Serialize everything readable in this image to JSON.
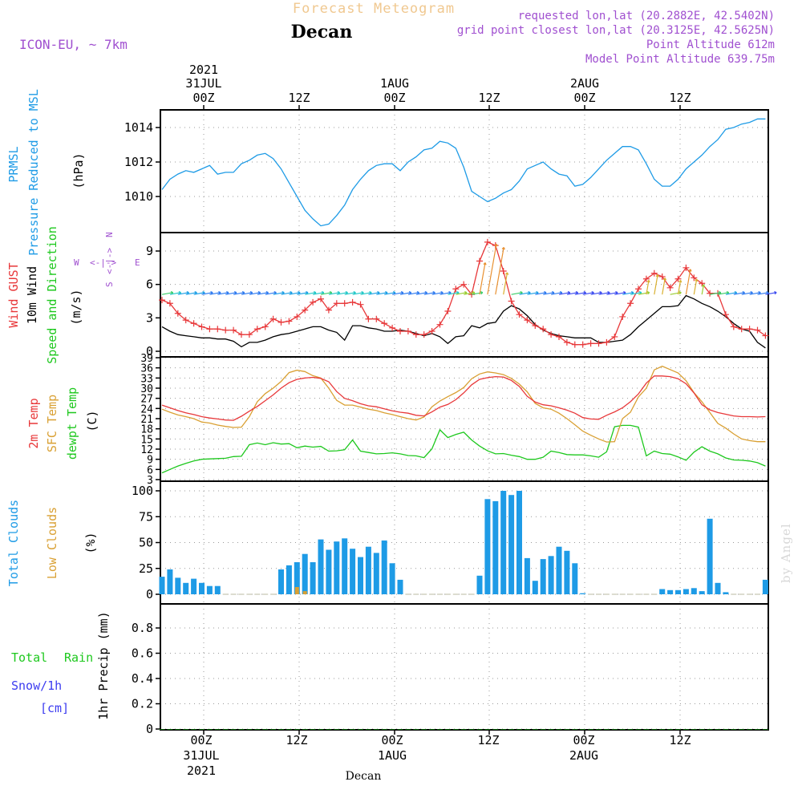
{
  "header": {
    "chart_title": "Forecast Meteogram",
    "location": "Decan",
    "model": "ICON-EU, ~ 7km",
    "requested": "requested lon,lat (20.2882E, 42.5402N)",
    "grid_point": "grid point closest lon,lat (20.3125E, 42.5625N)",
    "point_altitude": "Point Altitude 612m",
    "model_altitude": "Model Point Altitude 639.75m",
    "credit": "by Angel",
    "footer_location": "Decan"
  },
  "time_axis": {
    "ticks": [
      "00Z",
      "12Z",
      "00Z",
      "12Z",
      "00Z",
      "12Z"
    ],
    "date_labels": [
      "31JUL",
      "1AUG",
      "2AUG"
    ],
    "year": "2021"
  },
  "colors": {
    "prmsl": "#1e9be6",
    "gust": "#e8383a",
    "wind": "#000000",
    "t2m": "#e8383a",
    "sfc": "#d9a033",
    "dewpt": "#1ec81e",
    "total_clouds": "#1e9be6",
    "low_clouds": "#d9a033",
    "rain": "#1ec81e",
    "snow": "#3c3cf0",
    "meta": "#a050d0",
    "title": "#f0c890"
  },
  "chart_data": [
    {
      "type": "line",
      "panel": "pressure",
      "ylabels": [
        "PRMSL",
        "Pressure Reduced to MSL",
        "(hPa)"
      ],
      "yticks": [
        1010,
        1012,
        1014
      ],
      "ylim": [
        1008.1,
        1014.8
      ],
      "x_hours": [
        0,
        1,
        2,
        3,
        4,
        5,
        6,
        7,
        8,
        9,
        10,
        11,
        12,
        13,
        14,
        15,
        16,
        17,
        18,
        19,
        20,
        21,
        22,
        23,
        24,
        25,
        26,
        27,
        28,
        29,
        30,
        31,
        32,
        33,
        34,
        35,
        36,
        37,
        38,
        39,
        40,
        41,
        42,
        43,
        44,
        45,
        46,
        47,
        48,
        49,
        50,
        51,
        52,
        53,
        54,
        55,
        56,
        57,
        58,
        59,
        60,
        61,
        62,
        63,
        64,
        65,
        66,
        67,
        68,
        69,
        70,
        71,
        72,
        73,
        74,
        75,
        76
      ],
      "series": [
        {
          "key": "prmsl",
          "values": [
            1010.4,
            1011.0,
            1011.3,
            1011.5,
            1011.4,
            1011.6,
            1011.8,
            1011.3,
            1011.4,
            1011.4,
            1011.9,
            1012.1,
            1012.4,
            1012.5,
            1012.2,
            1011.6,
            1010.8,
            1010.0,
            1009.2,
            1008.7,
            1008.3,
            1008.4,
            1008.9,
            1009.5,
            1010.4,
            1011.0,
            1011.5,
            1011.8,
            1011.9,
            1011.9,
            1011.5,
            1012.0,
            1012.3,
            1012.7,
            1012.8,
            1013.2,
            1013.1,
            1012.8,
            1011.7,
            1010.3,
            1010.0,
            1009.7,
            1009.9,
            1010.2,
            1010.4,
            1010.9,
            1011.6,
            1011.8,
            1012.0,
            1011.6,
            1011.3,
            1011.2,
            1010.6,
            1010.7,
            1011.1,
            1011.6,
            1012.1,
            1012.5,
            1012.9,
            1012.9,
            1012.7,
            1011.9,
            1011.0,
            1010.6,
            1010.6,
            1011.0,
            1011.6,
            1012.0,
            1012.4,
            1012.9,
            1013.3,
            1013.9,
            1014.0,
            1014.2,
            1014.3,
            1014.5,
            1014.5
          ]
        }
      ]
    },
    {
      "type": "line",
      "panel": "wind",
      "ylabels": [
        "Wind GUST",
        "10m Wind",
        "Speed and Direction",
        "(m/s)"
      ],
      "yticks": [
        0,
        3,
        6,
        9
      ],
      "ylim": [
        -0.5,
        10.5
      ],
      "compass": {
        "n": "N",
        "s": "S",
        "e": "E",
        "w": "W"
      },
      "x_hours": [
        0,
        1,
        2,
        3,
        4,
        5,
        6,
        7,
        8,
        9,
        10,
        11,
        12,
        13,
        14,
        15,
        16,
        17,
        18,
        19,
        20,
        21,
        22,
        23,
        24,
        25,
        26,
        27,
        28,
        29,
        30,
        31,
        32,
        33,
        34,
        35,
        36,
        37,
        38,
        39,
        40,
        41,
        42,
        43,
        44,
        45,
        46,
        47,
        48,
        49,
        50,
        51,
        52,
        53,
        54,
        55,
        56,
        57,
        58,
        59,
        60,
        61,
        62,
        63,
        64,
        65,
        66,
        67,
        68,
        69,
        70,
        71,
        72,
        73,
        74,
        75,
        76
      ],
      "series": [
        {
          "key": "gust",
          "values": [
            4.6,
            4.3,
            3.4,
            2.8,
            2.5,
            2.2,
            2.0,
            2.0,
            1.9,
            1.9,
            1.5,
            1.5,
            2.0,
            2.2,
            2.9,
            2.6,
            2.7,
            3.1,
            3.7,
            4.4,
            4.7,
            3.7,
            4.3,
            4.3,
            4.4,
            4.2,
            2.9,
            2.9,
            2.5,
            2.1,
            1.8,
            1.8,
            1.5,
            1.5,
            1.8,
            2.4,
            3.6,
            5.6,
            6.0,
            5.1,
            8.1,
            9.8,
            9.5,
            7.2,
            4.5,
            3.3,
            2.8,
            2.3,
            2.0,
            1.5,
            1.3,
            0.8,
            0.6,
            0.6,
            0.7,
            0.7,
            0.8,
            1.3,
            3.1,
            4.3,
            5.6,
            6.5,
            7.0,
            6.7,
            5.7,
            6.5,
            7.5,
            6.6,
            6.1,
            5.2,
            5.2,
            3.3,
            2.2,
            2.0,
            2.0,
            1.9,
            1.4
          ]
        },
        {
          "key": "wind",
          "values": [
            2.2,
            1.8,
            1.5,
            1.4,
            1.3,
            1.2,
            1.2,
            1.1,
            1.1,
            0.9,
            0.4,
            0.8,
            0.8,
            1.0,
            1.3,
            1.5,
            1.6,
            1.8,
            2.0,
            2.2,
            2.2,
            1.9,
            1.7,
            1.0,
            2.3,
            2.3,
            2.1,
            2.0,
            1.8,
            1.8,
            1.9,
            1.8,
            1.6,
            1.4,
            1.6,
            1.3,
            0.7,
            1.3,
            1.4,
            2.3,
            2.1,
            2.5,
            2.6,
            3.6,
            4.1,
            3.8,
            3.2,
            2.4,
            1.9,
            1.6,
            1.4,
            1.3,
            1.2,
            1.2,
            1.2,
            0.8,
            0.8,
            0.9,
            1.0,
            1.5,
            2.2,
            2.8,
            3.4,
            4.0,
            4.0,
            4.1,
            5.0,
            4.7,
            4.3,
            4.0,
            3.6,
            3.1,
            2.5,
            2.0,
            1.8,
            0.8,
            0.3
          ]
        }
      ]
    },
    {
      "type": "line",
      "panel": "temperature",
      "ylabels": [
        "2m Temp",
        "SFC Temp",
        "dewpt Temp",
        "(C)"
      ],
      "yticks": [
        3,
        6,
        9,
        12,
        15,
        18,
        21,
        24,
        27,
        30,
        33,
        36,
        39
      ],
      "ylim": [
        3,
        39
      ],
      "x_hours": [
        0,
        1,
        2,
        3,
        4,
        5,
        6,
        7,
        8,
        9,
        10,
        11,
        12,
        13,
        14,
        15,
        16,
        17,
        18,
        19,
        20,
        21,
        22,
        23,
        24,
        25,
        26,
        27,
        28,
        29,
        30,
        31,
        32,
        33,
        34,
        35,
        36,
        37,
        38,
        39,
        40,
        41,
        42,
        43,
        44,
        45,
        46,
        47,
        48,
        49,
        50,
        51,
        52,
        53,
        54,
        55,
        56,
        57,
        58,
        59,
        60,
        61,
        62,
        63,
        64,
        65,
        66,
        67,
        68,
        69,
        70,
        71,
        72,
        73,
        74,
        75,
        76
      ],
      "series": [
        {
          "key": "t2m",
          "values": [
            25.0,
            24.2,
            23.4,
            22.7,
            22.2,
            21.6,
            21.2,
            20.9,
            20.6,
            20.5,
            21.7,
            23.2,
            24.6,
            26.3,
            28.0,
            30.0,
            31.6,
            32.6,
            33.0,
            33.2,
            32.9,
            31.9,
            29.0,
            27.0,
            26.3,
            25.4,
            24.8,
            24.5,
            23.9,
            23.3,
            22.9,
            22.6,
            22.0,
            21.8,
            23.0,
            24.4,
            25.2,
            26.6,
            28.6,
            31.0,
            32.6,
            33.1,
            33.4,
            33.3,
            32.3,
            30.5,
            27.6,
            25.9,
            25.1,
            24.8,
            24.2,
            23.5,
            22.6,
            21.3,
            20.9,
            20.8,
            22.0,
            23.0,
            24.2,
            26.0,
            28.3,
            31.5,
            33.6,
            33.6,
            33.4,
            32.8,
            31.3,
            28.6,
            25.1,
            23.6,
            22.8,
            22.3,
            21.8,
            21.6,
            21.6,
            21.5,
            21.6
          ]
        },
        {
          "key": "sfc",
          "values": [
            23.8,
            22.9,
            22.1,
            21.6,
            21.0,
            20.0,
            19.7,
            19.1,
            18.7,
            18.4,
            18.5,
            21.6,
            26.0,
            28.4,
            30.0,
            32.0,
            34.6,
            35.3,
            34.9,
            33.7,
            33.0,
            30.0,
            26.4,
            25.0,
            25.0,
            24.4,
            23.8,
            23.4,
            22.7,
            22.2,
            21.6,
            21.0,
            20.6,
            21.5,
            24.5,
            26.2,
            27.5,
            28.7,
            30.2,
            32.8,
            34.2,
            34.8,
            34.5,
            34.0,
            32.9,
            31.2,
            28.9,
            25.5,
            24.2,
            23.8,
            22.6,
            21.0,
            19.2,
            17.3,
            16.1,
            15.0,
            14.1,
            14.2,
            21.0,
            22.9,
            27.4,
            30.0,
            35.4,
            36.5,
            35.5,
            34.5,
            32.2,
            28.7,
            26.0,
            22.8,
            19.6,
            18.2,
            16.5,
            15.0,
            14.5,
            14.2,
            14.2
          ]
        },
        {
          "key": "dewpt",
          "values": [
            5.0,
            6.0,
            7.0,
            7.8,
            8.5,
            9.0,
            9.1,
            9.2,
            9.3,
            9.8,
            9.9,
            13.3,
            13.8,
            13.3,
            13.9,
            13.5,
            13.6,
            12.4,
            12.9,
            12.6,
            12.8,
            11.4,
            11.5,
            11.8,
            14.7,
            11.4,
            11.0,
            10.6,
            10.7,
            10.9,
            10.6,
            10.1,
            10.0,
            9.5,
            12.1,
            17.7,
            15.4,
            16.3,
            17.0,
            14.7,
            12.9,
            11.5,
            10.6,
            10.7,
            10.2,
            9.8,
            9.0,
            9.0,
            9.6,
            11.4,
            11.0,
            10.4,
            10.3,
            10.3,
            10.0,
            9.6,
            11.2,
            18.6,
            19.0,
            19.0,
            18.5,
            10.0,
            11.4,
            10.7,
            10.5,
            9.7,
            8.7,
            11.1,
            12.7,
            11.4,
            10.6,
            9.4,
            8.8,
            8.7,
            8.5,
            8.0,
            7.0
          ]
        }
      ]
    },
    {
      "type": "bar",
      "panel": "clouds",
      "ylabels": [
        "Total Clouds",
        "Low Clouds",
        "(%)"
      ],
      "yticks": [
        0,
        25,
        50,
        75,
        100
      ],
      "ylim": [
        -5,
        105
      ],
      "x_hours": [
        0,
        1,
        2,
        3,
        4,
        5,
        6,
        7,
        8,
        9,
        10,
        11,
        12,
        13,
        14,
        15,
        16,
        17,
        18,
        19,
        20,
        21,
        22,
        23,
        24,
        25,
        26,
        27,
        28,
        29,
        30,
        31,
        32,
        33,
        34,
        35,
        36,
        37,
        38,
        39,
        40,
        41,
        42,
        43,
        44,
        45,
        46,
        47,
        48,
        49,
        50,
        51,
        52,
        53,
        54,
        55,
        56,
        57,
        58,
        59,
        60,
        61,
        62,
        63,
        64,
        65,
        66,
        67,
        68,
        69,
        70,
        71,
        72,
        73,
        74,
        75,
        76
      ],
      "series": [
        {
          "key": "total_clouds",
          "values": [
            17,
            24,
            16,
            11,
            15,
            11,
            8,
            8,
            0,
            0,
            0,
            0,
            0,
            0,
            0,
            24,
            28,
            31,
            39,
            31,
            53,
            43,
            51,
            54,
            44,
            36,
            46,
            40,
            52,
            30,
            14,
            0,
            0,
            0,
            0,
            0,
            0,
            0,
            0,
            0,
            18,
            92,
            90,
            100,
            96,
            100,
            35,
            13,
            34,
            37,
            46,
            42,
            30,
            1,
            0,
            0,
            0,
            0,
            0,
            0,
            0,
            0,
            0,
            5,
            4,
            4,
            5,
            6,
            3,
            73,
            11,
            2,
            0,
            0,
            0,
            0,
            14
          ]
        },
        {
          "key": "low_clouds",
          "values": [
            0,
            0,
            0,
            0,
            0,
            0,
            0,
            0,
            0,
            0,
            0,
            0,
            0,
            0,
            0,
            0,
            0,
            7,
            3,
            0,
            0,
            0,
            0,
            0,
            0,
            0,
            0,
            0,
            0,
            0,
            0,
            0,
            0,
            0,
            0,
            0,
            0,
            0,
            0,
            0,
            0,
            0,
            0,
            0,
            0,
            0,
            0,
            0,
            0,
            0,
            0,
            0,
            0,
            0,
            0,
            0,
            0,
            0,
            0,
            0,
            0,
            0,
            0,
            0,
            0,
            0,
            0,
            0,
            0,
            0,
            0,
            0,
            0,
            0,
            0,
            0,
            0
          ]
        }
      ]
    },
    {
      "type": "bar",
      "panel": "precip",
      "ylabels": [
        "1hr Precip (mm)"
      ],
      "legend": [
        "Total",
        "Rain",
        "Snow/1h",
        "[cm]"
      ],
      "yticks": [
        0,
        0.2,
        0.4,
        0.6,
        0.8
      ],
      "ylim": [
        0,
        1
      ],
      "x_hours": [
        0,
        1,
        2,
        3,
        4,
        5,
        6,
        7,
        8,
        9,
        10,
        11,
        12,
        13,
        14,
        15,
        16,
        17,
        18,
        19,
        20,
        21,
        22,
        23,
        24,
        25,
        26,
        27,
        28,
        29,
        30,
        31,
        32,
        33,
        34,
        35,
        36,
        37,
        38,
        39,
        40,
        41,
        42,
        43,
        44,
        45,
        46,
        47,
        48,
        49,
        50,
        51,
        52,
        53,
        54,
        55,
        56,
        57,
        58,
        59,
        60,
        61,
        62,
        63,
        64,
        65,
        66,
        67,
        68,
        69,
        70,
        71,
        72,
        73,
        74,
        75,
        76
      ],
      "series": [
        {
          "key": "precip",
          "values": [
            0,
            0,
            0,
            0,
            0,
            0,
            0,
            0,
            0,
            0,
            0,
            0,
            0,
            0,
            0,
            0,
            0,
            0,
            0,
            0,
            0,
            0,
            0,
            0,
            0,
            0,
            0,
            0,
            0,
            0,
            0,
            0,
            0,
            0,
            0,
            0,
            0,
            0,
            0,
            0,
            0,
            0,
            0,
            0,
            0,
            0,
            0,
            0,
            0,
            0,
            0,
            0,
            0,
            0,
            0,
            0,
            0,
            0,
            0,
            0,
            0,
            0,
            0,
            0,
            0,
            0,
            0,
            0,
            0,
            0,
            0,
            0,
            0,
            0,
            0,
            0,
            0
          ]
        }
      ]
    }
  ]
}
